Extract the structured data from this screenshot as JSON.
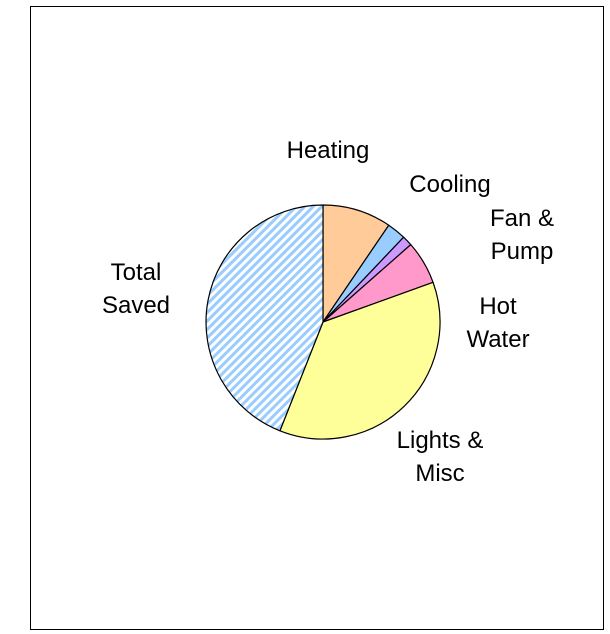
{
  "chart_data": {
    "type": "pie",
    "title": "",
    "start_angle_deg": 0,
    "direction": "clockwise",
    "slices": [
      {
        "label": [
          "Heating"
        ],
        "value": 9.5,
        "color": "#FFCC99",
        "pattern": "solid"
      },
      {
        "label": [
          "Cooling"
        ],
        "value": 2.6,
        "color": "#99CCFF",
        "pattern": "solid"
      },
      {
        "label": [
          "Fan &",
          "Pump"
        ],
        "value": 1.4,
        "color": "#CC99FF",
        "pattern": "solid"
      },
      {
        "label": [
          "Hot",
          "Water"
        ],
        "value": 6.0,
        "color": "#FF99CC",
        "pattern": "solid"
      },
      {
        "label": [
          "Lights &",
          "Misc"
        ],
        "value": 36.5,
        "color": "#FFFF99",
        "pattern": "solid"
      },
      {
        "label": [
          "Total",
          "Saved"
        ],
        "value": 44.0,
        "color": "#99CCFF",
        "pattern": "diagonal-stripes"
      }
    ]
  }
}
